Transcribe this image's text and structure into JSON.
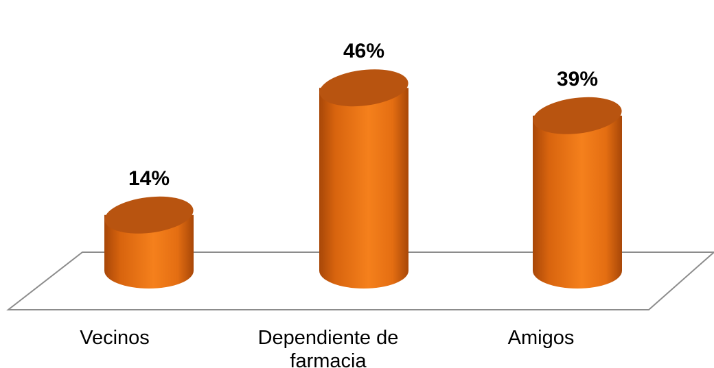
{
  "chart_data": {
    "type": "bar",
    "style": "3d-cylinder",
    "categories": [
      "Vecinos",
      "Dependiente de farmacia",
      "Amigos"
    ],
    "category_lines": [
      [
        "Vecinos"
      ],
      [
        "Dependiente de",
        "farmacia"
      ],
      [
        "Amigos"
      ]
    ],
    "values": [
      14,
      46,
      39
    ],
    "value_labels": [
      "14%",
      "46%",
      "39%"
    ],
    "unit": "%",
    "ylim": [
      0,
      50
    ],
    "grid": false,
    "legend": "none",
    "colors": {
      "bar": "#f07818",
      "bar_dark": "#a84708",
      "bar_top": "#b85410",
      "floor_line": "#8c8c8c"
    }
  }
}
